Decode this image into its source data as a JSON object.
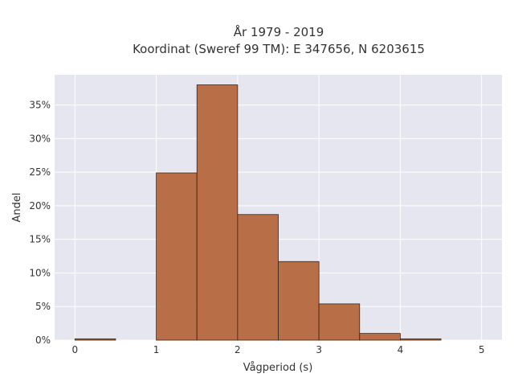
{
  "chart_data": {
    "type": "bar",
    "title_line1": "År 1979 - 2019",
    "title_line2": "Koordinat (Sweref 99 TM): E 347656, N 6203615",
    "xlabel": "Vågperiod (s)",
    "ylabel": "Andel",
    "bin_width": 0.5,
    "bins": [
      {
        "x0": 0.0,
        "x1": 0.5,
        "value": 0.2
      },
      {
        "x0": 0.5,
        "x1": 1.0,
        "value": 0.0
      },
      {
        "x0": 1.0,
        "x1": 1.5,
        "value": 24.9
      },
      {
        "x0": 1.5,
        "x1": 2.0,
        "value": 38.0
      },
      {
        "x0": 2.0,
        "x1": 2.5,
        "value": 18.7
      },
      {
        "x0": 2.5,
        "x1": 3.0,
        "value": 11.7
      },
      {
        "x0": 3.0,
        "x1": 3.5,
        "value": 5.4
      },
      {
        "x0": 3.5,
        "x1": 4.0,
        "value": 1.0
      },
      {
        "x0": 4.0,
        "x1": 4.5,
        "value": 0.2
      }
    ],
    "xlim": [
      -0.25,
      5.25
    ],
    "ylim": [
      0,
      39.5
    ],
    "x_ticks": [
      {
        "value": 0,
        "label": "0"
      },
      {
        "value": 1,
        "label": "1"
      },
      {
        "value": 2,
        "label": "2"
      },
      {
        "value": 3,
        "label": "3"
      },
      {
        "value": 4,
        "label": "4"
      },
      {
        "value": 5,
        "label": "5"
      }
    ],
    "y_ticks": [
      {
        "value": 0,
        "label": "0%"
      },
      {
        "value": 5,
        "label": "5%"
      },
      {
        "value": 10,
        "label": "10%"
      },
      {
        "value": 15,
        "label": "15%"
      },
      {
        "value": 20,
        "label": "20%"
      },
      {
        "value": 25,
        "label": "25%"
      },
      {
        "value": 30,
        "label": "30%"
      },
      {
        "value": 35,
        "label": "35%"
      }
    ],
    "grid": true,
    "colors": {
      "bar_fill": "#b5683d",
      "bar_stroke": "#3a2416",
      "plot_bg": "#e6e6f0",
      "grid": "#ffffff"
    }
  }
}
